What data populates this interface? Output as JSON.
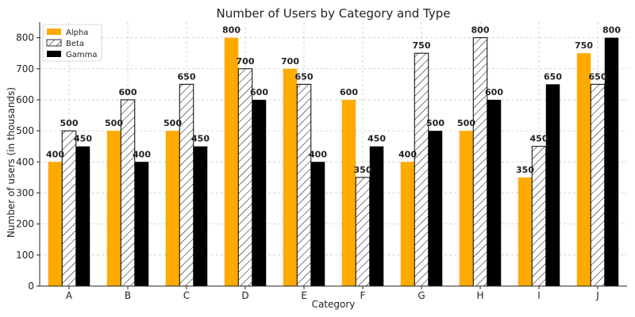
{
  "chart_data": {
    "type": "bar",
    "title": "Number of Users by Category and Type",
    "xlabel": "Category",
    "ylabel": "Number of users (in thousands)",
    "categories": [
      "A",
      "B",
      "C",
      "D",
      "E",
      "F",
      "G",
      "H",
      "I",
      "J"
    ],
    "series": [
      {
        "name": "Alpha",
        "color": "#FFAA00",
        "pattern": "solid",
        "values": [
          400,
          500,
          500,
          800,
          700,
          600,
          400,
          500,
          350,
          750
        ]
      },
      {
        "name": "Beta",
        "color": "#FFFFFF",
        "pattern": "hatch",
        "values": [
          500,
          600,
          650,
          700,
          650,
          350,
          750,
          800,
          450,
          650
        ]
      },
      {
        "name": "Gamma",
        "color": "#000000",
        "pattern": "solid",
        "values": [
          450,
          400,
          450,
          600,
          400,
          450,
          500,
          600,
          650,
          800
        ]
      }
    ],
    "ylim": [
      0,
      850
    ],
    "yticks": [
      0,
      100,
      200,
      300,
      400,
      500,
      600,
      700,
      800
    ],
    "grid": true,
    "legend_position": "top-left"
  }
}
